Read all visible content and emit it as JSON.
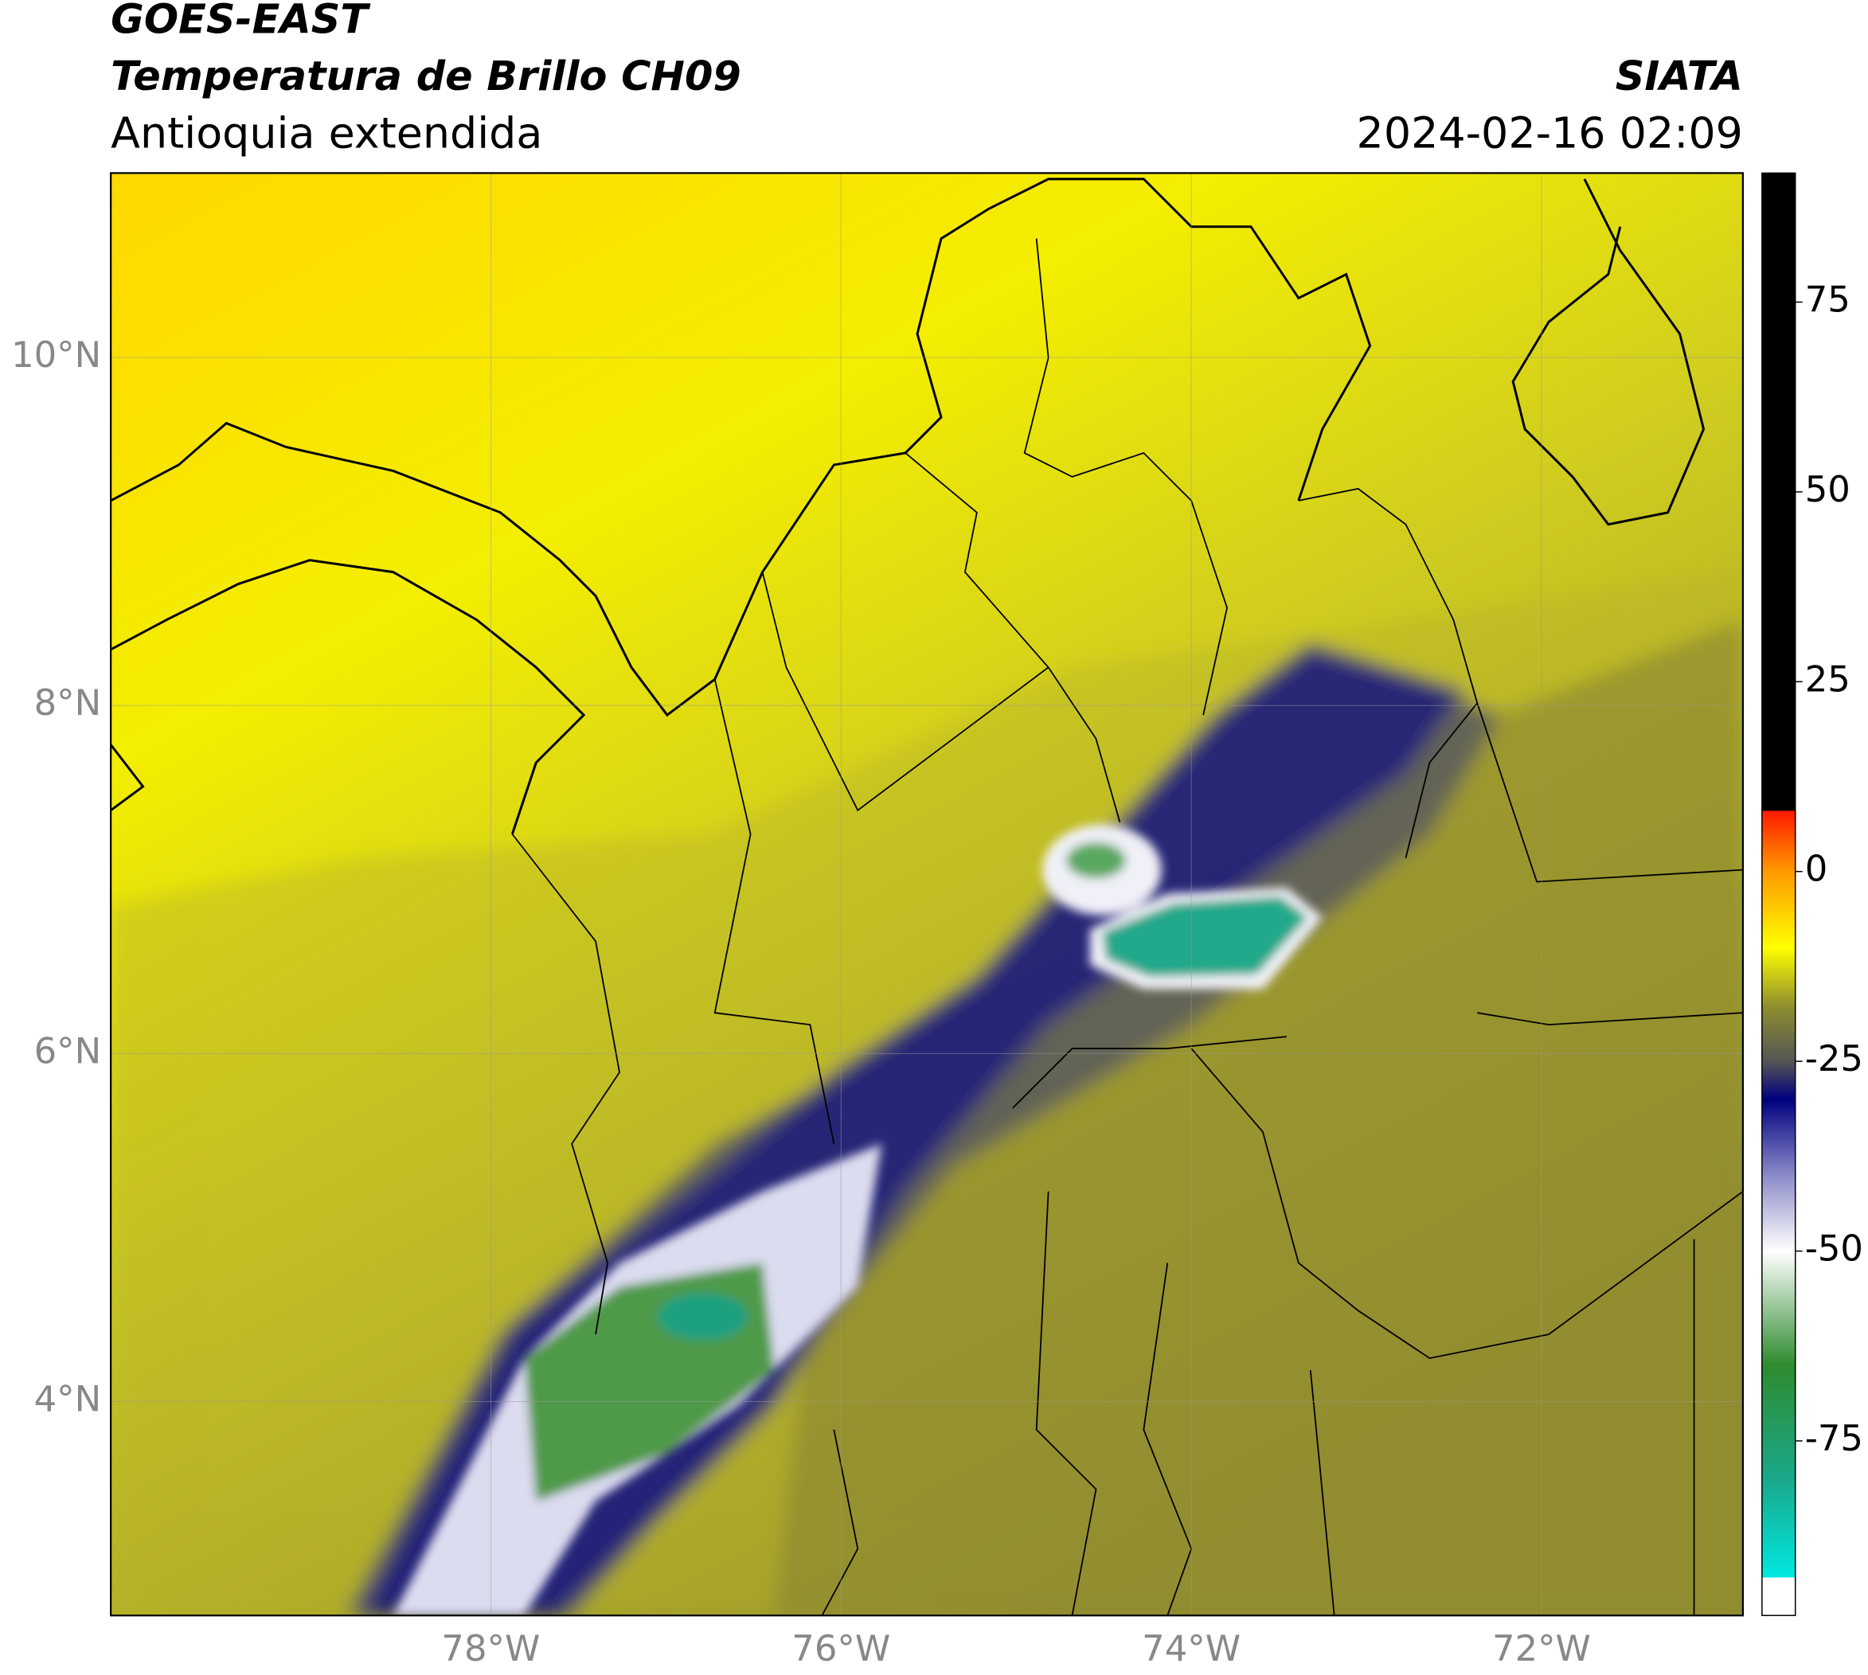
{
  "header": {
    "satellite": "GOES-EAST",
    "product": "Temperatura de Brillo CH09",
    "region": "Antioquia extendida",
    "source": "SIATA",
    "datetime": "2024-02-16 02:09"
  },
  "chart_data": {
    "type": "map",
    "xlim": [
      -80.17,
      -70.85
    ],
    "ylim": [
      2.77,
      11.06
    ],
    "xticks": [
      {
        "value": -78,
        "label": "78°W"
      },
      {
        "value": -76,
        "label": "76°W"
      },
      {
        "value": -74,
        "label": "74°W"
      },
      {
        "value": -72,
        "label": "72°W"
      }
    ],
    "yticks": [
      {
        "value": 4,
        "label": "4°N"
      },
      {
        "value": 6,
        "label": "6°N"
      },
      {
        "value": 8,
        "label": "8°N"
      },
      {
        "value": 10,
        "label": "10°N"
      }
    ],
    "grid": true,
    "colorbar": {
      "clim": [
        -98,
        92
      ],
      "ticks": [
        -75,
        -50,
        -25,
        0,
        25,
        50,
        75
      ],
      "stops": [
        {
          "value": -98,
          "color": "#ffffff"
        },
        {
          "value": -93,
          "color": "#ffffff"
        },
        {
          "value": -93,
          "color": "#00e8e0"
        },
        {
          "value": -80,
          "color": "#1aa88a"
        },
        {
          "value": -65,
          "color": "#2e8b2e"
        },
        {
          "value": -50,
          "color": "#ffffff"
        },
        {
          "value": -40,
          "color": "#8a8ac8"
        },
        {
          "value": -30,
          "color": "#000080"
        },
        {
          "value": -25,
          "color": "#555555"
        },
        {
          "value": -18,
          "color": "#8c8c30"
        },
        {
          "value": -10,
          "color": "#ffff00"
        },
        {
          "value": 0,
          "color": "#ff9900"
        },
        {
          "value": 8,
          "color": "#ff1a00"
        },
        {
          "value": 8,
          "color": "#000000"
        },
        {
          "value": 92,
          "color": "#000000"
        }
      ]
    }
  }
}
